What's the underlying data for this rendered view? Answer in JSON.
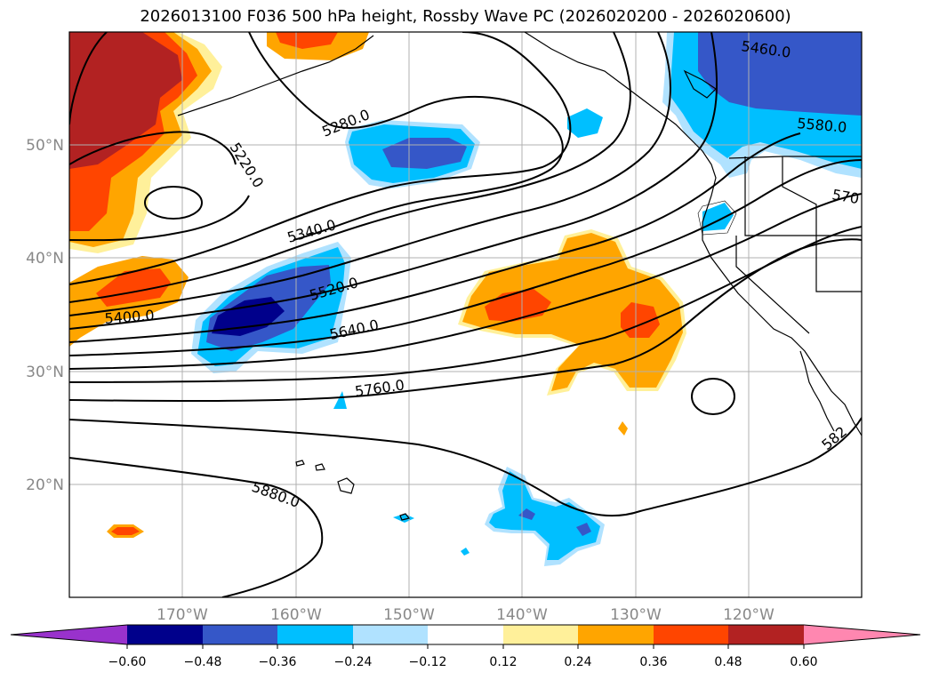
{
  "map": {
    "title": "2026013100 F036 500 hPa height, Rossby Wave PC (2026020200 - 2026020600)",
    "lat_labels": [
      "50°N",
      "40°N",
      "30°N",
      "20°N"
    ],
    "lon_labels": [
      "170°W",
      "160°W",
      "150°W",
      "140°W",
      "130°W",
      "120°W"
    ],
    "contour_labels": [
      "5460.0",
      "5580.0",
      "5280.0",
      "5220.0",
      "5340.0",
      "5520.0",
      "5400.0",
      "5640.0",
      "5760.0",
      "5880.0",
      "582",
      "570"
    ]
  },
  "colorbar": {
    "tick_labels": [
      "−0.60",
      "−0.48",
      "−0.36",
      "−0.24",
      "−0.12",
      "0.12",
      "0.24",
      "0.36",
      "0.48",
      "0.60"
    ],
    "colors": [
      "#9932cc",
      "#00008b",
      "#3557c8",
      "#00bfff",
      "#b0e2ff",
      "#ffffff",
      "#fff09a",
      "#ffa500",
      "#ff4500",
      "#b22222",
      "#ff87b0"
    ]
  }
}
